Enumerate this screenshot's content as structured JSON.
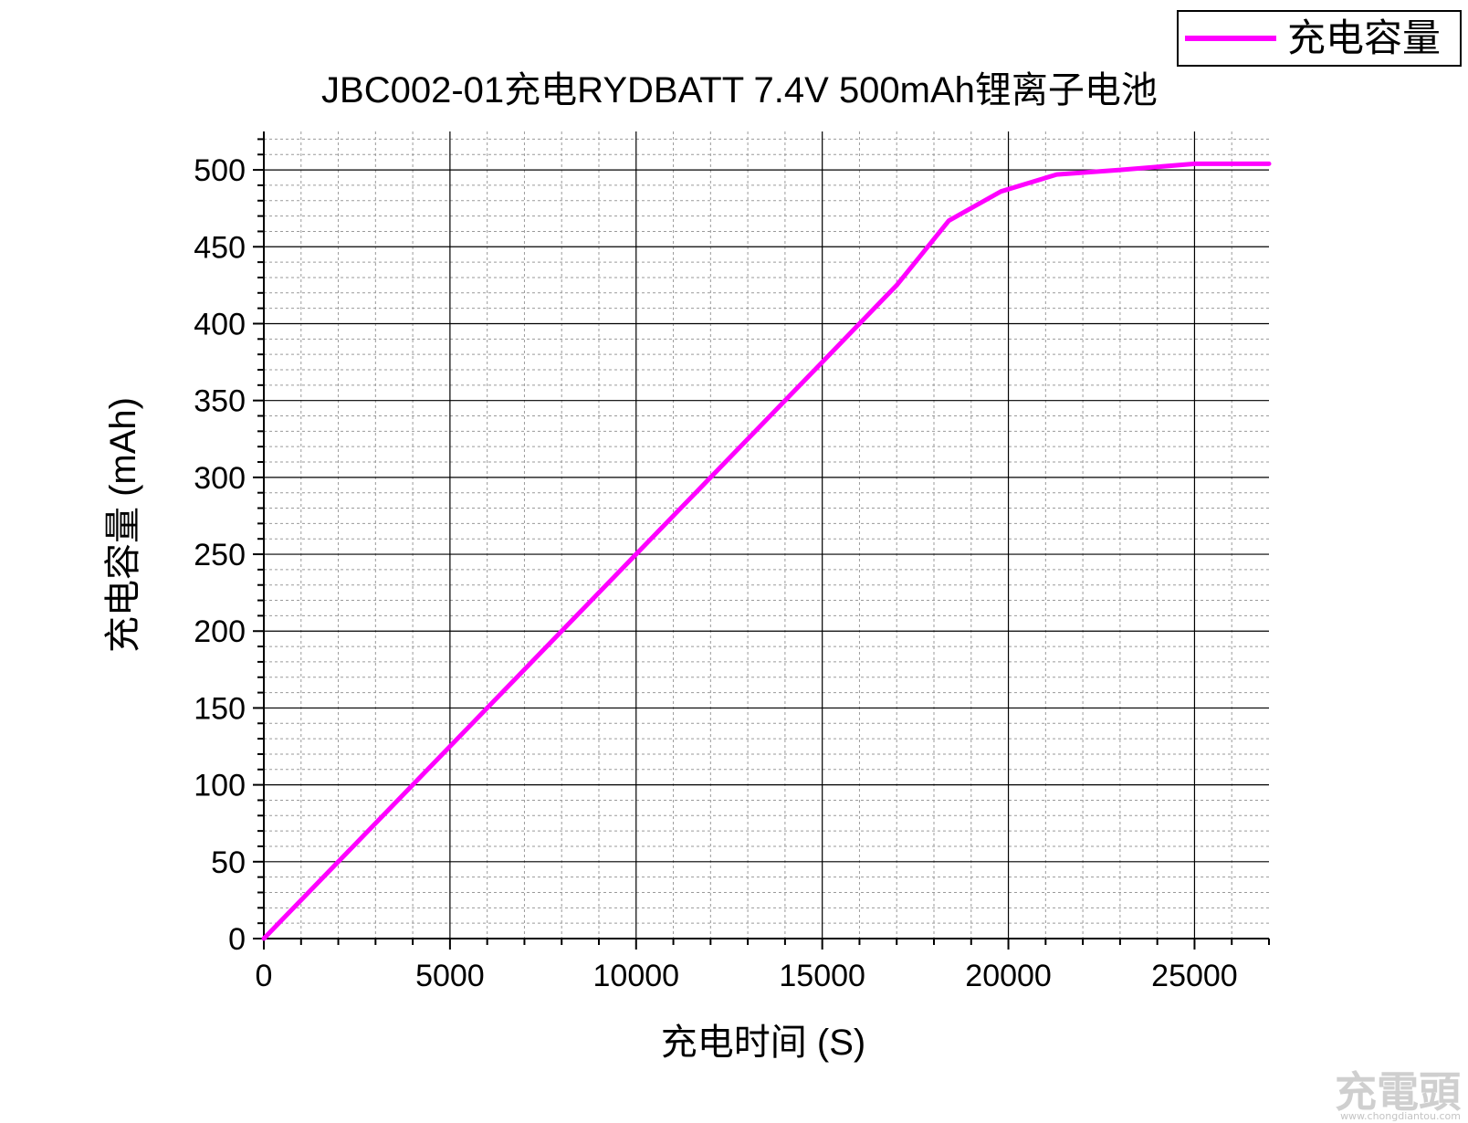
{
  "chart_data": {
    "type": "line",
    "title": "JBC002-01充电RYDBATT 7.4V 500mAh锂离子电池",
    "xlabel": "充电时间 (S)",
    "ylabel": "充电容量 (mAh)",
    "xlim": [
      0,
      27000
    ],
    "ylim": [
      0,
      525
    ],
    "xticks": [
      0,
      5000,
      10000,
      15000,
      20000,
      25000
    ],
    "yticks": [
      0,
      50,
      100,
      150,
      200,
      250,
      300,
      350,
      400,
      450,
      500
    ],
    "grid": true,
    "legend_position": "top-right",
    "series": [
      {
        "name": "充电容量",
        "color": "#ff00ff",
        "x": [
          0,
          2000,
          5000,
          10000,
          15000,
          17000,
          18400,
          19800,
          21300,
          23000,
          25000,
          27000
        ],
        "y": [
          0,
          50,
          125,
          250,
          375,
          425,
          467,
          486,
          497,
          500,
          504,
          504
        ]
      }
    ]
  },
  "watermark": {
    "brand": "充電頭",
    "site": "www.chongdiantou.com"
  }
}
